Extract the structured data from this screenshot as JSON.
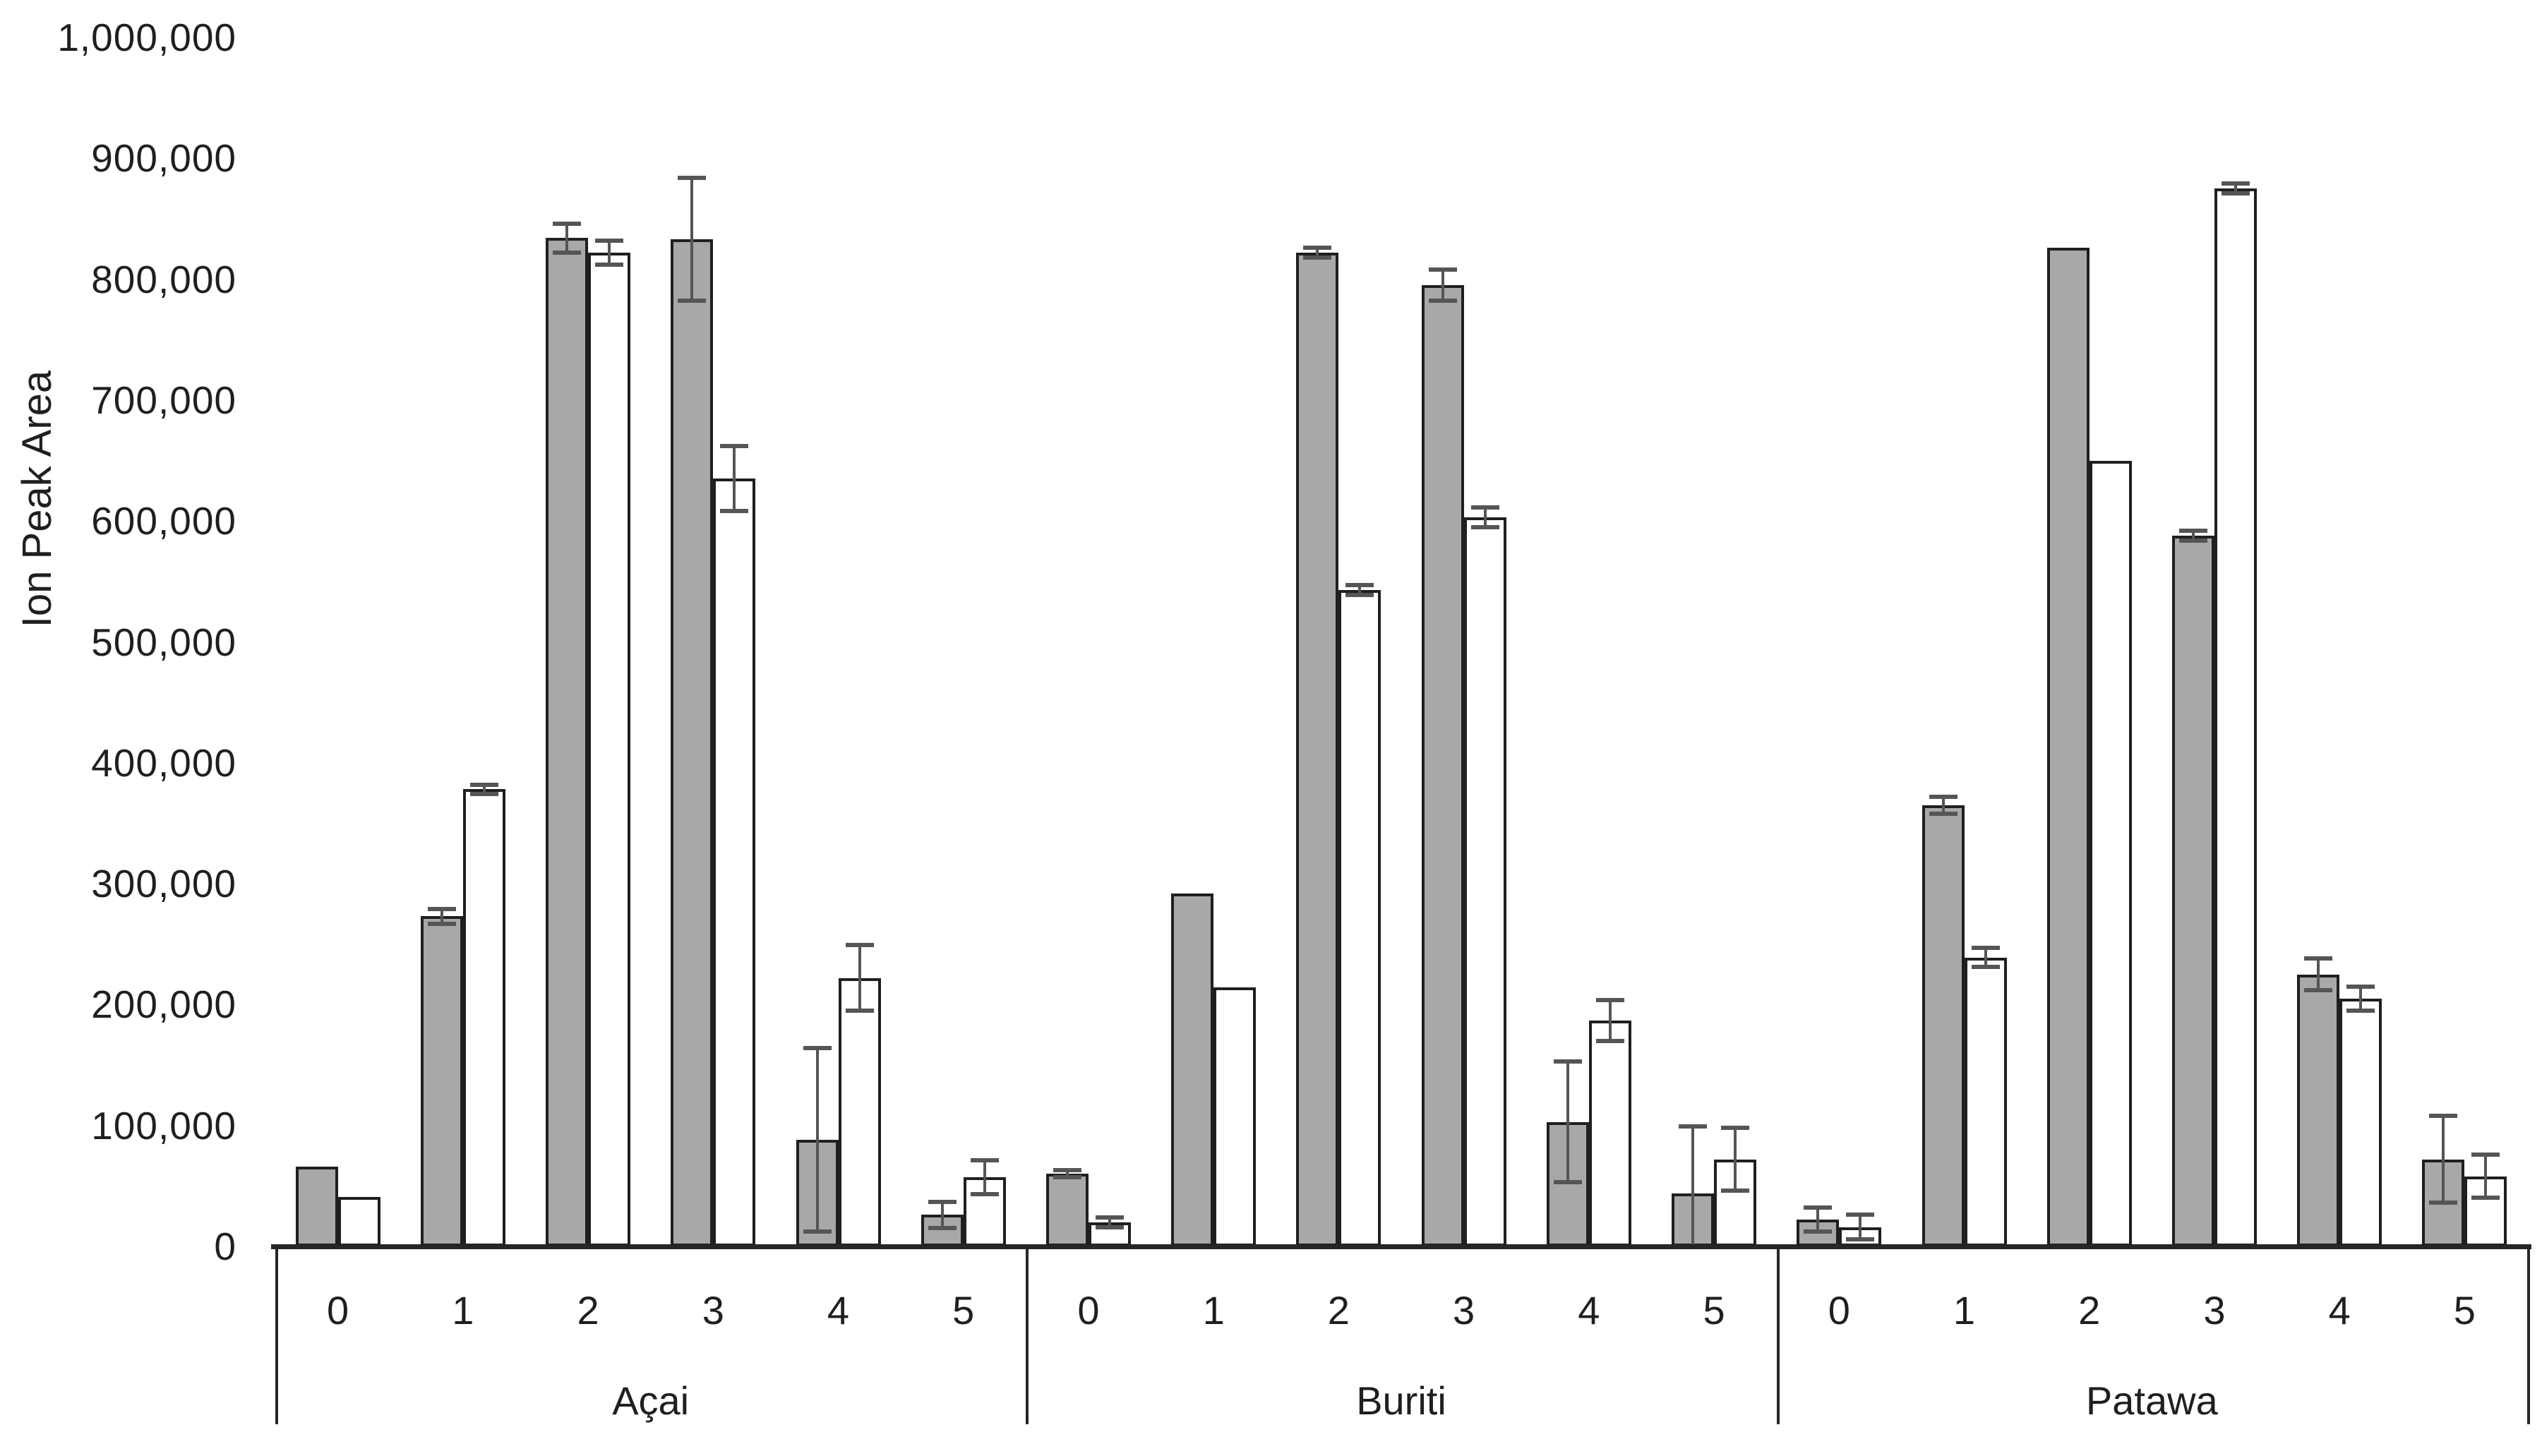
{
  "chart_data": {
    "type": "bar",
    "title": "",
    "xlabel": "",
    "ylabel": "Ion Peak Area",
    "ylim": [
      0,
      1000000
    ],
    "grid": "off",
    "legend": "none",
    "y_ticks": [
      0,
      100000,
      200000,
      300000,
      400000,
      500000,
      600000,
      700000,
      800000,
      900000,
      1000000
    ],
    "y_tick_labels": [
      "0",
      "100,000",
      "200,000",
      "300,000",
      "400,000",
      "500,000",
      "600,000",
      "700,000",
      "800,000",
      "900,000",
      "1,000,000"
    ],
    "sub_categories": [
      "0",
      "1",
      "2",
      "3",
      "4",
      "5"
    ],
    "series_styles": [
      {
        "name": "shaded-bar",
        "fill": "#a8a8a8"
      },
      {
        "name": "open-bar",
        "fill": "#ffffff"
      }
    ],
    "colors": {
      "gray_fill": "#a8a8a8",
      "white_fill": "#ffffff",
      "bar_border": "#1f1f1f",
      "error_bar": "#555555",
      "axis": "#262626",
      "text": "#1f1f1f"
    },
    "groups": [
      {
        "label": "Açai",
        "gray_values": [
          66000,
          273000,
          834000,
          833000,
          88000,
          26000
        ],
        "gray_errors": [
          null,
          6000,
          12000,
          51000,
          76000,
          11000
        ],
        "white_values": [
          41000,
          378000,
          822000,
          635000,
          222000,
          57000
        ],
        "white_errors": [
          null,
          4000,
          10000,
          27000,
          27000,
          14000
        ]
      },
      {
        "label": "Buriti",
        "gray_values": [
          60000,
          292000,
          822000,
          795000,
          103000,
          44000
        ],
        "gray_errors": [
          3000,
          null,
          4000,
          13000,
          50000,
          55000
        ],
        "white_values": [
          20000,
          214000,
          543000,
          603000,
          187000,
          72000
        ],
        "white_errors": [
          4000,
          null,
          4000,
          8000,
          17000,
          26000
        ]
      },
      {
        "label": "Patawa",
        "gray_values": [
          22000,
          365000,
          826000,
          588000,
          225000,
          72000
        ],
        "gray_errors": [
          10000,
          7000,
          null,
          4000,
          13000,
          36000
        ],
        "white_values": [
          16000,
          239000,
          650000,
          875000,
          205000,
          58000
        ],
        "white_errors": [
          10000,
          8000,
          null,
          4000,
          10000,
          18000
        ]
      }
    ]
  }
}
